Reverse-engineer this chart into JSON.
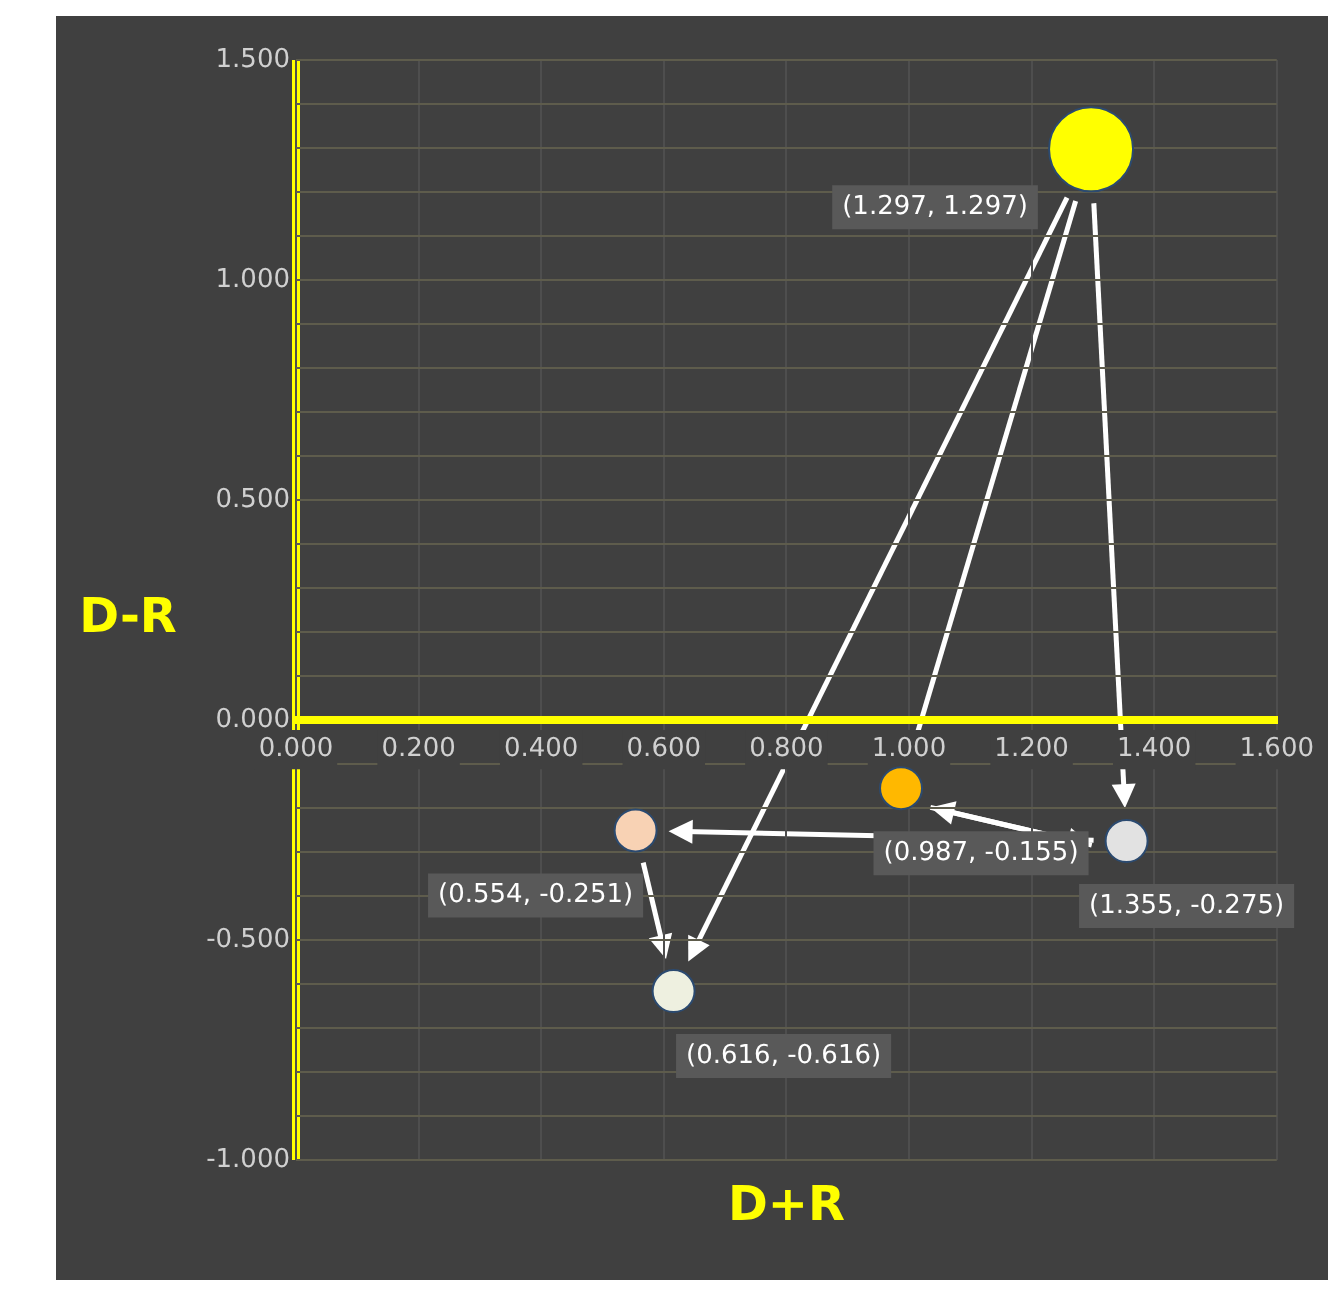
{
  "chart_data": {
    "type": "bubble",
    "xlabel": "D+R",
    "ylabel": "D-R",
    "x": [
      1.297,
      0.987,
      1.355,
      0.554,
      0.616
    ],
    "values": [
      1.297,
      -0.155,
      -0.275,
      -0.251,
      -0.616
    ],
    "sizes": [
      1,
      0.25,
      0.25,
      0.25,
      0.25
    ],
    "colors": [
      "#ffff00",
      "#ffb800",
      "#e2e2e2",
      "#f8d2b4",
      "#eef0e0"
    ],
    "value_labels": [
      "(1.297, 1.297)",
      "(0.987, -0.155)",
      "(1.355, -0.275)",
      "(0.554, -0.251)",
      "(0.616, -0.616)"
    ],
    "xlim": [
      0,
      1.6
    ],
    "xticks": [
      {
        "value": 0,
        "label": "0.000"
      },
      {
        "value": 0.2,
        "label": "0.200"
      },
      {
        "value": 0.4,
        "label": "0.400"
      },
      {
        "value": 0.6,
        "label": "0.600"
      },
      {
        "value": 0.8,
        "label": "0.800"
      },
      {
        "value": 1,
        "label": "1.000"
      },
      {
        "value": 1.2,
        "label": "1.200"
      },
      {
        "value": 1.4,
        "label": "1.400"
      },
      {
        "value": 1.6,
        "label": "1.600"
      }
    ],
    "ylim": [
      -1,
      1.5
    ],
    "yticks": [
      {
        "value": -1,
        "label": "-1.000"
      },
      {
        "value": -0.9,
        "label": null
      },
      {
        "value": -0.8,
        "label": null
      },
      {
        "value": -0.7,
        "label": null
      },
      {
        "value": -0.6,
        "label": null
      },
      {
        "value": -0.5,
        "label": "-0.500"
      },
      {
        "value": -0.4,
        "label": null
      },
      {
        "value": -0.3,
        "label": null
      },
      {
        "value": -0.2,
        "label": null
      },
      {
        "value": -0.1,
        "label": null
      },
      {
        "value": 0,
        "label": "0.000"
      },
      {
        "value": 0.1,
        "label": null
      },
      {
        "value": 0.2,
        "label": null
      },
      {
        "value": 0.3,
        "label": null
      },
      {
        "value": 0.4,
        "label": null
      },
      {
        "value": 0.5,
        "label": "0.500"
      },
      {
        "value": 0.6,
        "label": null
      },
      {
        "value": 0.7,
        "label": null
      },
      {
        "value": 0.8,
        "label": null
      },
      {
        "value": 0.9,
        "label": null
      },
      {
        "value": 1,
        "label": "1.000"
      },
      {
        "value": 1.1,
        "label": null
      },
      {
        "value": 1.2,
        "label": null
      },
      {
        "value": 1.3,
        "label": null
      },
      {
        "value": 1.4,
        "label": null
      },
      {
        "value": 1.5,
        "label": "1.500"
      }
    ],
    "grid": true,
    "legend": false
  }
}
